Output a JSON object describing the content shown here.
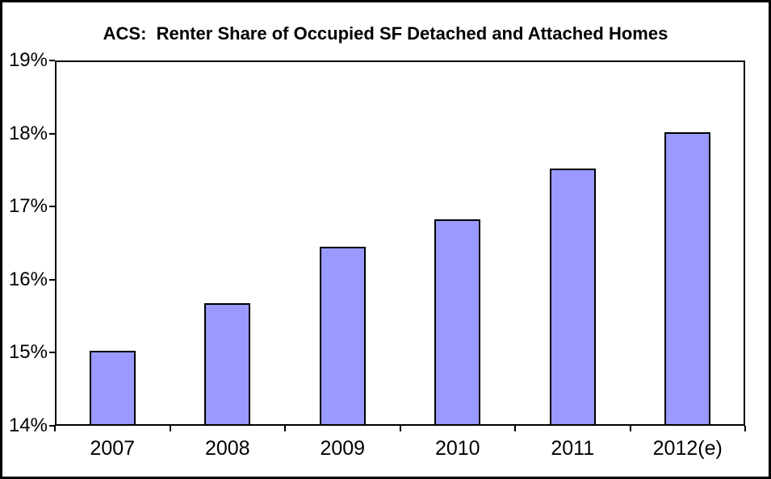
{
  "chart_data": {
    "type": "bar",
    "title": "ACS:  Renter Share of Occupied SF Detached and Attached Homes",
    "categories": [
      "2007",
      "2008",
      "2009",
      "2010",
      "2011",
      "2012(e)"
    ],
    "values": [
      15.03,
      15.68,
      16.45,
      16.83,
      17.52,
      18.02
    ],
    "xlabel": "",
    "ylabel": "",
    "ylim": [
      14,
      19
    ],
    "yticks": [
      {
        "value": 19,
        "label": "19%"
      },
      {
        "value": 18,
        "label": "18%"
      },
      {
        "value": 17,
        "label": "17%"
      },
      {
        "value": 16,
        "label": "16%"
      },
      {
        "value": 15,
        "label": "15%"
      },
      {
        "value": 14,
        "label": "14%"
      }
    ],
    "grid": false,
    "legend": false,
    "bar_color": "#9999FF",
    "bar_border_color": "#000000",
    "background_color": "#FFFFFF",
    "border_color": "#000000"
  }
}
